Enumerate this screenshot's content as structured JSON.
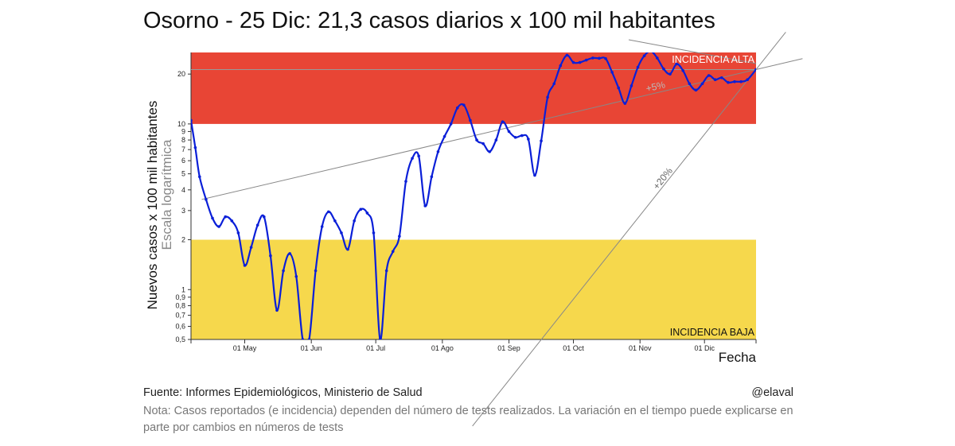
{
  "title": "Osorno - 25 Dic: 21,3 casos diarios x 100 mil habitantes",
  "footer": {
    "source": "Fuente: Informes Epidemiológicos, Ministerio de Salud",
    "handle": "@elaval",
    "note": "Nota: Casos reportados (e incidencia) dependen del número de tests realizados. La variación en el tiempo puede explicarse en parte por cambios en números de tests"
  },
  "colors": {
    "high": "#e84535",
    "low": "#f6d84c",
    "line": "#0a1fd8",
    "ref": "#888888"
  },
  "chart_data": {
    "type": "line",
    "title": "Osorno - 25 Dic: 21,3 casos diarios x 100 mil habitantes",
    "xlabel": "Fecha",
    "ylabel": "Nuevos casos x 100 mil habitantes",
    "ylabel2": "Escala logarítmica",
    "yscale": "log",
    "ylim": [
      0.5,
      27
    ],
    "x_range": [
      "2020-04-06",
      "2020-12-25"
    ],
    "yticks": [
      0.5,
      0.6,
      0.7,
      0.8,
      0.9,
      1,
      2,
      3,
      4,
      5,
      6,
      7,
      8,
      9,
      10,
      20
    ],
    "ytick_labels": [
      "0,5",
      "0,6",
      "0,7",
      "0,8",
      "0,9",
      "1",
      "2",
      "3",
      "4",
      "5",
      "6",
      "7",
      "8",
      "9",
      "10",
      "20"
    ],
    "xticks": [
      {
        "date": "2020-05-01",
        "label": "01 May"
      },
      {
        "date": "2020-06-01",
        "label": "01 Jun"
      },
      {
        "date": "2020-07-01",
        "label": "01 Jul"
      },
      {
        "date": "2020-08-01",
        "label": "01 Ago"
      },
      {
        "date": "2020-09-01",
        "label": "01 Sep"
      },
      {
        "date": "2020-10-01",
        "label": "01 Oct"
      },
      {
        "date": "2020-11-01",
        "label": "01 Nov"
      },
      {
        "date": "2020-12-01",
        "label": "01 Dic"
      }
    ],
    "bands": [
      {
        "label": "INCIDENCIA ALTA",
        "from": 10,
        "to": 27
      },
      {
        "label": "INCIDENCIA BAJA",
        "from": 0.5,
        "to": 2
      }
    ],
    "reference_lines": [
      {
        "label": "+5%",
        "from": {
          "date": "2020-04-11",
          "value": 3.5
        },
        "to": {
          "date": "2020-12-25",
          "value": 21.3
        }
      },
      {
        "label": "+20%",
        "from": {
          "date": "2020-08-15",
          "value": 0.15
        },
        "to": {
          "date": "2020-12-25",
          "value": 21.3
        }
      },
      {
        "label": "",
        "from": {
          "date": "2020-04-06",
          "value": 21.3
        },
        "to": {
          "date": "2020-12-25",
          "value": 21.3
        }
      }
    ],
    "series": [
      {
        "name": "Osorno",
        "x": [
          "2020-04-06",
          "2020-04-08",
          "2020-04-10",
          "2020-04-13",
          "2020-04-16",
          "2020-04-19",
          "2020-04-22",
          "2020-04-25",
          "2020-04-28",
          "2020-05-01",
          "2020-05-04",
          "2020-05-07",
          "2020-05-10",
          "2020-05-13",
          "2020-05-16",
          "2020-05-19",
          "2020-05-22",
          "2020-05-25",
          "2020-05-28",
          "2020-05-31",
          "2020-06-03",
          "2020-06-06",
          "2020-06-09",
          "2020-06-12",
          "2020-06-15",
          "2020-06-18",
          "2020-06-21",
          "2020-06-24",
          "2020-06-27",
          "2020-06-30",
          "2020-07-03",
          "2020-07-06",
          "2020-07-09",
          "2020-07-12",
          "2020-07-15",
          "2020-07-18",
          "2020-07-21",
          "2020-07-24",
          "2020-07-27",
          "2020-07-30",
          "2020-08-02",
          "2020-08-05",
          "2020-08-08",
          "2020-08-11",
          "2020-08-14",
          "2020-08-17",
          "2020-08-20",
          "2020-08-23",
          "2020-08-26",
          "2020-08-29",
          "2020-09-01",
          "2020-09-04",
          "2020-09-07",
          "2020-09-10",
          "2020-09-13",
          "2020-09-16",
          "2020-09-19",
          "2020-09-22",
          "2020-09-25",
          "2020-09-28",
          "2020-10-01",
          "2020-10-04",
          "2020-10-07",
          "2020-10-10",
          "2020-10-13",
          "2020-10-16",
          "2020-10-19",
          "2020-10-22",
          "2020-10-25",
          "2020-10-28",
          "2020-10-31",
          "2020-11-03",
          "2020-11-06",
          "2020-11-09",
          "2020-11-12",
          "2020-11-15",
          "2020-11-18",
          "2020-11-21",
          "2020-11-24",
          "2020-11-27",
          "2020-11-30",
          "2020-12-03",
          "2020-12-06",
          "2020-12-09",
          "2020-12-12",
          "2020-12-15",
          "2020-12-18",
          "2020-12-21",
          "2020-12-25"
        ],
        "values": [
          10.5,
          7.2,
          4.8,
          3.5,
          2.7,
          2.4,
          2.75,
          2.6,
          2.2,
          1.4,
          1.8,
          2.45,
          2.75,
          1.6,
          0.75,
          1.3,
          1.65,
          1.2,
          0.5,
          0.5,
          1.3,
          2.4,
          2.95,
          2.6,
          2.2,
          1.75,
          2.6,
          3.05,
          2.9,
          2.2,
          0.5,
          1.3,
          1.7,
          2.1,
          4.5,
          6.2,
          6.4,
          3.2,
          4.8,
          6.8,
          8.4,
          10.0,
          12.5,
          13.0,
          10.5,
          8.0,
          7.6,
          6.8,
          8.0,
          10.3,
          9.0,
          8.3,
          8.5,
          8.1,
          4.9,
          7.9,
          14.5,
          17.5,
          22.5,
          26.0,
          23.5,
          23.5,
          24.3,
          25.0,
          24.9,
          24.8,
          20.5,
          16.5,
          13.3,
          17.0,
          22.0,
          25.8,
          27.5,
          25.0,
          21.5,
          20.0,
          23.0,
          21.0,
          17.5,
          16.0,
          17.5,
          19.6,
          18.5,
          19.0,
          17.8,
          18.0,
          18.0,
          18.5,
          21.3
        ]
      }
    ]
  }
}
